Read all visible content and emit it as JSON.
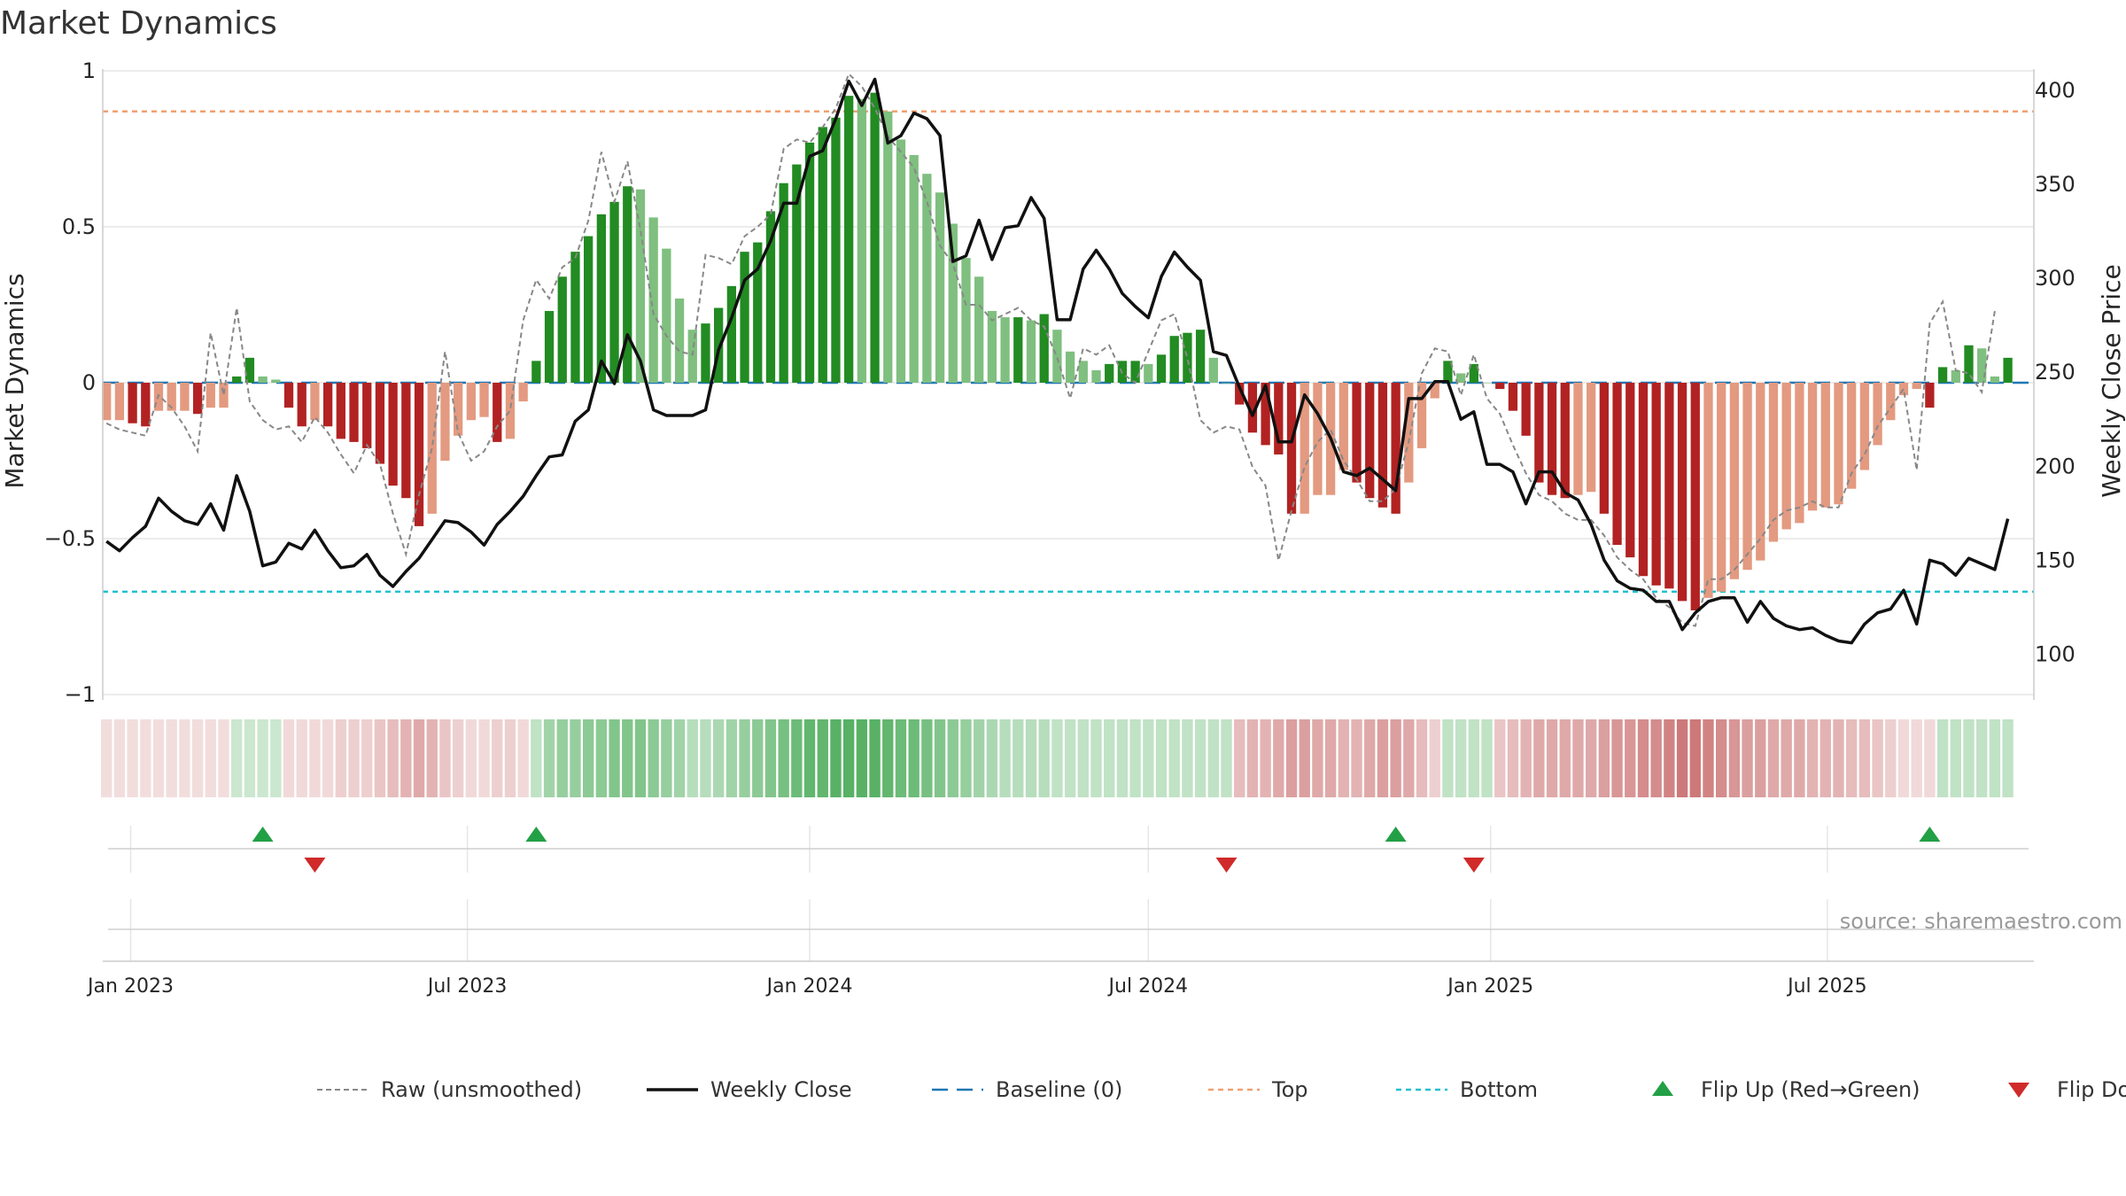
{
  "chart_data": {
    "type": "bar",
    "title": "Market Dynamics",
    "ylabel_left": "Market Dynamics",
    "ylabel_right": "Weekly Close Price",
    "y_left_ticks": [
      "1",
      "0.5",
      "0",
      "−0.5",
      "−1"
    ],
    "y_left_tick_values": [
      1,
      0.5,
      0,
      -0.5,
      -1
    ],
    "y_left_range": [
      -1,
      1
    ],
    "y_right_ticks": [
      "100",
      "150",
      "200",
      "250",
      "300",
      "350",
      "400"
    ],
    "y_right_tick_values": [
      100,
      150,
      200,
      250,
      300,
      350,
      400
    ],
    "y_right_range": [
      86,
      418
    ],
    "x_ticks": [
      "Jan 2023",
      "Jul 2023",
      "Jan 2024",
      "Jul 2024",
      "Jan 2025",
      "Jul 2025"
    ],
    "x_tick_values": [
      "2023-01-01",
      "2023-07-01",
      "2024-01-01",
      "2024-07-01",
      "2025-01-01",
      "2025-07-01"
    ],
    "x_range": [
      "2022-12-17",
      "2025-10-20"
    ],
    "first_week": "2022-12-19",
    "week_step_days": 7,
    "top_level": 0.87,
    "bottom_level": -0.67,
    "baseline": 0,
    "grid": true,
    "source": "source: sharemaestro.com",
    "colors": {
      "strong_green": "#228b22",
      "light_green": "#7fbf7f",
      "strong_red": "#b22222",
      "light_red": "#e39a80",
      "raw_line": "#888888",
      "close_line": "#111111",
      "baseline": "#1f77b4",
      "top": "#f0a070",
      "bottom": "#20c0d0",
      "flip_up": "#22a045",
      "flip_down": "#d02a2a"
    },
    "legend": [
      {
        "label": "Raw (unsmoothed)",
        "style": "raw"
      },
      {
        "label": "Weekly Close",
        "style": "close"
      },
      {
        "label": "Baseline (0)",
        "style": "baseline"
      },
      {
        "label": "Top",
        "style": "top"
      },
      {
        "label": "Bottom",
        "style": "bottom"
      },
      {
        "label": "Flip Up (Red→Green)",
        "style": "flip_up"
      },
      {
        "label": "Flip Down (Green→Red)",
        "style": "flip_down"
      }
    ],
    "legend_position": "bottom-center",
    "flip_up_dates": [
      "2023-03-13",
      "2023-08-07",
      "2024-11-11",
      "2025-08-25"
    ],
    "flip_down_dates": [
      "2023-04-10",
      "2024-08-12",
      "2024-12-23"
    ],
    "bars": [
      -0.12,
      -0.12,
      -0.13,
      -0.14,
      -0.09,
      -0.09,
      -0.09,
      -0.1,
      -0.08,
      -0.08,
      0.02,
      0.08,
      0.02,
      0.01,
      -0.08,
      -0.14,
      -0.12,
      -0.14,
      -0.18,
      -0.19,
      -0.21,
      -0.26,
      -0.33,
      -0.37,
      -0.46,
      -0.42,
      -0.25,
      -0.17,
      -0.12,
      -0.11,
      -0.19,
      -0.18,
      -0.06,
      0.07,
      0.23,
      0.34,
      0.42,
      0.47,
      0.54,
      0.58,
      0.63,
      0.62,
      0.53,
      0.43,
      0.27,
      0.17,
      0.19,
      0.24,
      0.31,
      0.42,
      0.45,
      0.55,
      0.64,
      0.7,
      0.77,
      0.82,
      0.85,
      0.92,
      0.91,
      0.93,
      0.87,
      0.78,
      0.73,
      0.67,
      0.61,
      0.51,
      0.4,
      0.34,
      0.23,
      0.21,
      0.21,
      0.2,
      0.22,
      0.17,
      0.1,
      0.07,
      0.04,
      0.06,
      0.07,
      0.07,
      0.06,
      0.09,
      0.15,
      0.16,
      0.17,
      0.08,
      0.0,
      -0.07,
      -0.16,
      -0.2,
      -0.23,
      -0.42,
      -0.42,
      -0.36,
      -0.36,
      -0.28,
      -0.32,
      -0.37,
      -0.4,
      -0.42,
      -0.32,
      -0.21,
      -0.05,
      0.07,
      0.03,
      0.06,
      0.0,
      -0.02,
      -0.09,
      -0.17,
      -0.32,
      -0.36,
      -0.37,
      -0.36,
      -0.35,
      -0.42,
      -0.52,
      -0.56,
      -0.62,
      -0.65,
      -0.66,
      -0.7,
      -0.73,
      -0.69,
      -0.67,
      -0.63,
      -0.6,
      -0.57,
      -0.51,
      -0.47,
      -0.45,
      -0.41,
      -0.4,
      -0.39,
      -0.34,
      -0.28,
      -0.2,
      -0.12,
      -0.04,
      -0.02,
      -0.08,
      0.05,
      0.04,
      0.12,
      0.11,
      0.02,
      0.08
    ],
    "raw": [
      -0.13,
      -0.15,
      -0.16,
      -0.17,
      -0.04,
      -0.08,
      -0.14,
      -0.22,
      0.16,
      -0.04,
      0.24,
      -0.06,
      -0.12,
      -0.15,
      -0.14,
      -0.19,
      -0.11,
      -0.16,
      -0.23,
      -0.29,
      -0.2,
      -0.26,
      -0.42,
      -0.55,
      -0.36,
      -0.21,
      0.1,
      -0.16,
      -0.25,
      -0.22,
      -0.14,
      -0.09,
      0.2,
      0.33,
      0.27,
      0.37,
      0.4,
      0.52,
      0.74,
      0.58,
      0.71,
      0.49,
      0.22,
      0.15,
      0.1,
      0.09,
      0.41,
      0.4,
      0.38,
      0.47,
      0.5,
      0.54,
      0.75,
      0.78,
      0.77,
      0.82,
      0.88,
      0.99,
      0.95,
      0.88,
      0.79,
      0.74,
      0.69,
      0.58,
      0.44,
      0.38,
      0.25,
      0.25,
      0.2,
      0.22,
      0.24,
      0.2,
      0.18,
      0.08,
      -0.05,
      0.11,
      0.09,
      0.12,
      0.03,
      0.0,
      0.1,
      0.2,
      0.22,
      0.08,
      -0.12,
      -0.16,
      -0.14,
      -0.15,
      -0.27,
      -0.33,
      -0.57,
      -0.41,
      -0.27,
      -0.19,
      -0.15,
      -0.25,
      -0.31,
      -0.38,
      -0.38,
      -0.34,
      -0.19,
      0.03,
      0.11,
      0.1,
      -0.04,
      0.09,
      -0.05,
      -0.1,
      -0.2,
      -0.29,
      -0.36,
      -0.38,
      -0.42,
      -0.44,
      -0.44,
      -0.49,
      -0.56,
      -0.6,
      -0.63,
      -0.69,
      -0.72,
      -0.77,
      -0.78,
      -0.63,
      -0.63,
      -0.6,
      -0.55,
      -0.5,
      -0.44,
      -0.41,
      -0.4,
      -0.38,
      -0.4,
      -0.4,
      -0.29,
      -0.23,
      -0.14,
      -0.08,
      -0.02,
      -0.28,
      0.19,
      0.26,
      0.04,
      0.03,
      -0.03,
      0.23
    ],
    "close": [
      160,
      155,
      162,
      168,
      183,
      176,
      171,
      169,
      180,
      166,
      195,
      176,
      147,
      149,
      159,
      156,
      166,
      155,
      146,
      147,
      153,
      142,
      136,
      144,
      151,
      161,
      171,
      170,
      165,
      158,
      169,
      176,
      184,
      195,
      205,
      206,
      224,
      230,
      256,
      244,
      270,
      256,
      230,
      227,
      227,
      227,
      230,
      262,
      279,
      299,
      305,
      320,
      340,
      340,
      365,
      368,
      385,
      405,
      392,
      406,
      372,
      376,
      388,
      385,
      376,
      309,
      312,
      331,
      310,
      327,
      328,
      343,
      332,
      278,
      278,
      305,
      315,
      305,
      292,
      285,
      279,
      301,
      314,
      306,
      299,
      261,
      259,
      242,
      227,
      243,
      213,
      213,
      238,
      228,
      215,
      197,
      195,
      199,
      193,
      187,
      236,
      236,
      245,
      245,
      225,
      229,
      201,
      201,
      197,
      180,
      197,
      197,
      186,
      182,
      169,
      150,
      139,
      135,
      134,
      128,
      128,
      113,
      122,
      128,
      130,
      130,
      117,
      128,
      119,
      115,
      113,
      114,
      110,
      107,
      106,
      116,
      122,
      124,
      134,
      116,
      150,
      148,
      142,
      151,
      148,
      145,
      172
    ],
    "heat": [
      0.18,
      0.18,
      0.18,
      0.18,
      0.18,
      0.18,
      0.18,
      0.18,
      0.18,
      0.18,
      0.25,
      0.25,
      0.25,
      0.25,
      0.2,
      0.2,
      0.2,
      0.2,
      0.25,
      0.25,
      0.25,
      0.3,
      0.35,
      0.4,
      0.45,
      0.4,
      0.3,
      0.25,
      0.2,
      0.2,
      0.25,
      0.25,
      0.2,
      0.3,
      0.45,
      0.5,
      0.5,
      0.55,
      0.55,
      0.6,
      0.6,
      0.6,
      0.55,
      0.5,
      0.45,
      0.35,
      0.35,
      0.4,
      0.45,
      0.5,
      0.55,
      0.6,
      0.65,
      0.7,
      0.75,
      0.75,
      0.8,
      0.8,
      0.8,
      0.8,
      0.75,
      0.7,
      0.7,
      0.65,
      0.6,
      0.55,
      0.5,
      0.45,
      0.4,
      0.35,
      0.35,
      0.35,
      0.35,
      0.3,
      0.3,
      0.3,
      0.3,
      0.3,
      0.3,
      0.3,
      0.3,
      0.3,
      0.3,
      0.3,
      0.3,
      0.3,
      0.3,
      0.35,
      0.4,
      0.4,
      0.45,
      0.5,
      0.5,
      0.45,
      0.45,
      0.4,
      0.4,
      0.45,
      0.5,
      0.5,
      0.45,
      0.35,
      0.25,
      0.3,
      0.3,
      0.3,
      0.3,
      0.3,
      0.35,
      0.4,
      0.45,
      0.45,
      0.45,
      0.45,
      0.45,
      0.5,
      0.55,
      0.55,
      0.6,
      0.6,
      0.65,
      0.7,
      0.7,
      0.65,
      0.6,
      0.55,
      0.5,
      0.5,
      0.45,
      0.45,
      0.45,
      0.4,
      0.4,
      0.4,
      0.35,
      0.35,
      0.3,
      0.25,
      0.2,
      0.2,
      0.2,
      0.3,
      0.3,
      0.3,
      0.3,
      0.3,
      0.3
    ]
  }
}
